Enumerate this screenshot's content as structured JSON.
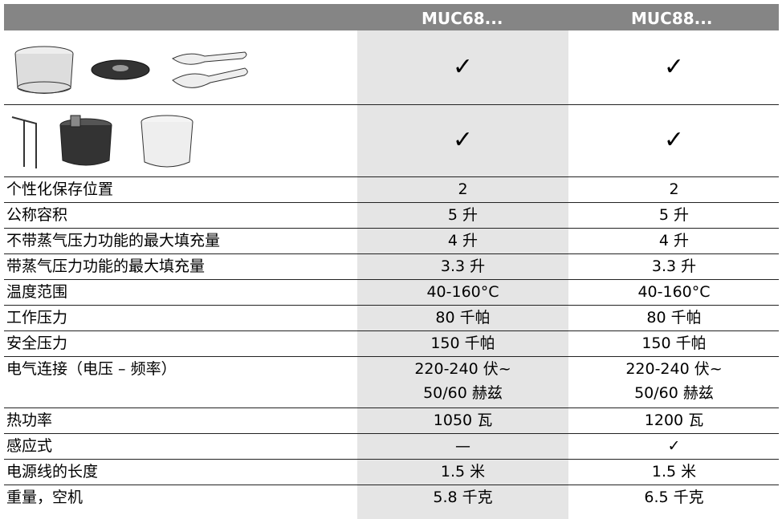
{
  "table": {
    "header": [
      "MUC68...",
      "MUC88..."
    ],
    "image_rows": [
      [
        "✓",
        "✓"
      ],
      [
        "✓",
        "✓"
      ]
    ],
    "rows": [
      {
        "label": "个性化保存位置",
        "values": [
          "2",
          "2"
        ]
      },
      {
        "label": "公称容积",
        "values": [
          "5 升",
          "5 升"
        ]
      },
      {
        "label": "不带蒸气压力功能的最大填充量",
        "values": [
          "4 升",
          "4 升"
        ]
      },
      {
        "label": "带蒸气压力功能的最大填充量",
        "values": [
          "3.3 升",
          "3.3 升"
        ]
      },
      {
        "label": "温度范围",
        "values": [
          "40-160°C",
          "40-160°C"
        ]
      },
      {
        "label": "工作压力",
        "values": [
          "80 千帕",
          "80 千帕"
        ]
      },
      {
        "label": "安全压力",
        "values": [
          "150 千帕",
          "150 千帕"
        ]
      },
      {
        "label": "电气连接（电压 – 频率）",
        "values": [
          [
            "220-240 伏~",
            "50/60 赫兹"
          ],
          [
            "220-240 伏~",
            "50/60 赫兹"
          ]
        ]
      },
      {
        "label": "热功率",
        "values": [
          "1050 瓦",
          "1200 瓦"
        ]
      },
      {
        "label": "感应式",
        "values": [
          "—",
          "✓"
        ]
      },
      {
        "label": "电源线的长度",
        "values": [
          "1.5 米",
          "1.5 米"
        ]
      },
      {
        "label": "重量，空机",
        "values": [
          "5.8 千克",
          "6.5 千克"
        ]
      }
    ]
  }
}
